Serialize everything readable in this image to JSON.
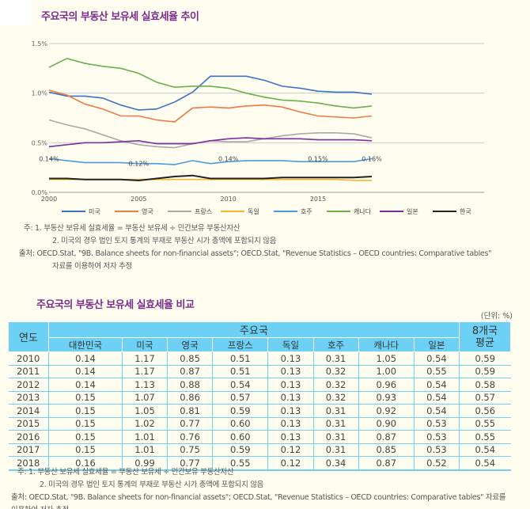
{
  "chart_title": "주요국의 부동산 보유세 실효세율 추이",
  "chart_data": {
    "type": "line",
    "title": "주요국의 부동산 보유세 실효세율 추이",
    "x": [
      2000,
      2001,
      2002,
      2003,
      2004,
      2005,
      2006,
      2007,
      2008,
      2009,
      2010,
      2011,
      2012,
      2013,
      2014,
      2015,
      2016,
      2017,
      2018
    ],
    "x_ticks": [
      "2000",
      "2005",
      "2010",
      "2015"
    ],
    "y_ticks": [
      "0.0%",
      "0.5%",
      "1.0%",
      "1.5%"
    ],
    "ylim": [
      0,
      1.5
    ],
    "grid": true,
    "legend_placement": "bottom",
    "series": [
      {
        "name": "미국",
        "color": "#3a72c8",
        "values": [
          1.01,
          0.97,
          0.97,
          0.95,
          0.88,
          0.83,
          0.84,
          0.91,
          1.01,
          1.17,
          1.17,
          1.17,
          1.13,
          1.07,
          1.05,
          1.02,
          1.01,
          1.01,
          0.99
        ]
      },
      {
        "name": "영국",
        "color": "#ef7a45",
        "values": [
          1.03,
          0.98,
          0.89,
          0.84,
          0.77,
          0.77,
          0.73,
          0.71,
          0.85,
          0.86,
          0.85,
          0.87,
          0.88,
          0.86,
          0.81,
          0.77,
          0.76,
          0.75,
          0.77
        ]
      },
      {
        "name": "프랑스",
        "color": "#a9a9a9",
        "values": [
          0.73,
          0.68,
          0.64,
          0.58,
          0.52,
          0.48,
          0.46,
          0.45,
          0.49,
          0.52,
          0.51,
          0.51,
          0.54,
          0.57,
          0.59,
          0.6,
          0.6,
          0.59,
          0.55
        ]
      },
      {
        "name": "독일",
        "color": "#f5b82e",
        "values": [
          0.13,
          0.13,
          0.13,
          0.13,
          0.13,
          0.13,
          0.13,
          0.13,
          0.13,
          0.13,
          0.13,
          0.13,
          0.13,
          0.13,
          0.13,
          0.13,
          0.13,
          0.12,
          0.12
        ]
      },
      {
        "name": "호주",
        "color": "#4a9be0",
        "values": [
          0.34,
          0.32,
          0.3,
          0.3,
          0.3,
          0.29,
          0.29,
          0.28,
          0.32,
          0.29,
          0.31,
          0.32,
          0.32,
          0.32,
          0.31,
          0.31,
          0.31,
          0.31,
          0.34
        ]
      },
      {
        "name": "캐나다",
        "color": "#6ab04c",
        "values": [
          1.26,
          1.35,
          1.3,
          1.27,
          1.25,
          1.2,
          1.11,
          1.06,
          1.07,
          1.07,
          1.05,
          1.0,
          0.96,
          0.93,
          0.92,
          0.9,
          0.87,
          0.85,
          0.87
        ]
      },
      {
        "name": "일본",
        "color": "#7d2fa0",
        "values": [
          0.46,
          0.48,
          0.5,
          0.5,
          0.51,
          0.52,
          0.49,
          0.49,
          0.49,
          0.52,
          0.54,
          0.55,
          0.54,
          0.54,
          0.54,
          0.53,
          0.53,
          0.53,
          0.52
        ]
      },
      {
        "name": "한국",
        "color": "#222222",
        "values": [
          0.14,
          0.14,
          0.13,
          0.13,
          0.13,
          0.12,
          0.14,
          0.16,
          0.17,
          0.14,
          0.14,
          0.14,
          0.14,
          0.15,
          0.15,
          0.15,
          0.15,
          0.15,
          0.16
        ]
      }
    ],
    "annotations": [
      {
        "x": 2000,
        "text": "0.14%"
      },
      {
        "x": 2005,
        "text": "0.12%"
      },
      {
        "x": 2010,
        "text": "0.14%"
      },
      {
        "x": 2015,
        "text": "0.15%"
      },
      {
        "x": 2018,
        "text": "0.16%"
      }
    ]
  },
  "notes1": {
    "n1": "주: 1. 부동산 보유세 실효세율 = 부동산 보유세 ÷ 민간보유 부동산자산",
    "n2": "2. 미국의 경우 법인 토지 통계의 부재로 부동산 시가 총액에 포함되지 않음",
    "src": "출처: OECD.Stat, \"9B. Balance sheets for non-financial assets\"; OECD.Stat, \"Revenue Statistics – OECD countries: Comparative tables\"",
    "src2": "자료를 이용하여 저자 추정"
  },
  "table_title": "주요국의 부동산 보유세 실효세율 비교",
  "unit": "(단위: %)",
  "table": {
    "year_header": "연도",
    "group_header": "주요국",
    "avg_header": "8개국 평균",
    "columns": [
      "대한민국",
      "미국",
      "영국",
      "프랑스",
      "독일",
      "호주",
      "캐나다",
      "일본"
    ],
    "rows": [
      [
        "2010",
        "0.14",
        "1.17",
        "0.85",
        "0.51",
        "0.13",
        "0.31",
        "1.05",
        "0.54",
        "0.59"
      ],
      [
        "2011",
        "0.14",
        "1.17",
        "0.87",
        "0.51",
        "0.13",
        "0.32",
        "1.00",
        "0.55",
        "0.59"
      ],
      [
        "2012",
        "0.14",
        "1.13",
        "0.88",
        "0.54",
        "0.13",
        "0.32",
        "0.96",
        "0.54",
        "0.58"
      ],
      [
        "2013",
        "0.15",
        "1.07",
        "0.86",
        "0.57",
        "0.13",
        "0.32",
        "0.93",
        "0.54",
        "0.57"
      ],
      [
        "2014",
        "0.15",
        "1.05",
        "0.81",
        "0.59",
        "0.13",
        "0.31",
        "0.92",
        "0.54",
        "0.56"
      ],
      [
        "2015",
        "0.15",
        "1.02",
        "0.77",
        "0.60",
        "0.13",
        "0.31",
        "0.90",
        "0.53",
        "0.55"
      ],
      [
        "2016",
        "0.15",
        "1.01",
        "0.76",
        "0.60",
        "0.13",
        "0.31",
        "0.87",
        "0.53",
        "0.55"
      ],
      [
        "2017",
        "0.15",
        "1.01",
        "0.75",
        "0.59",
        "0.12",
        "0.31",
        "0.85",
        "0.53",
        "0.54"
      ],
      [
        "2018",
        "0.16",
        "0.99",
        "0.77",
        "0.55",
        "0.12",
        "0.34",
        "0.87",
        "0.52",
        "0.54"
      ]
    ]
  },
  "notes2": {
    "n1": "주: 1. 부동산 보유세 실효세율 = 부동산 보유세 ÷ 민간보유 부동산자산",
    "n2": "2. 미국의 경우 법인 토지 통계의 부재로 부동산 시가 총액에 포함되지 않음",
    "src": "출처: OECD.Stat, \"9B. Balance sheets for non-financial assets\"; OECD.Stat, \"Revenue Statistics – OECD countries: Comparative tables\" 자료를 이용하여 저자 추정"
  }
}
